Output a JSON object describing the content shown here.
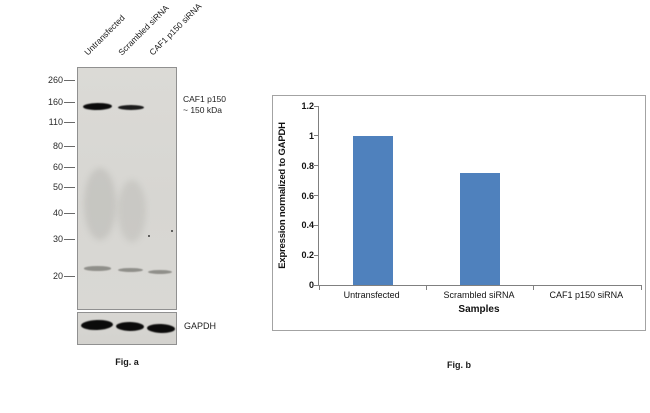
{
  "fig_a": {
    "caption": "Fig. a",
    "lanes": [
      "Untransfected",
      "Scrambled siRNA",
      "CAF1 p150 siRNA"
    ],
    "markers": [
      "260",
      "160",
      "110",
      "80",
      "60",
      "50",
      "40",
      "30",
      "20"
    ],
    "target_label_line1": "CAF1 p150",
    "target_label_line2": "~ 150 kDa",
    "loading_control": "GAPDH"
  },
  "fig_b": {
    "caption": "Fig. b"
  },
  "chart_data": {
    "type": "bar",
    "title": "",
    "categories": [
      "Untransfected",
      "Scrambled siRNA",
      "CAF1 p150 siRNA"
    ],
    "values": [
      1.0,
      0.75,
      0
    ],
    "xlabel": "Samples",
    "ylabel": "Expression normalized to GAPDH",
    "ylim": [
      0,
      1.2
    ],
    "yticks": [
      0,
      0.2,
      0.4,
      0.6,
      0.8,
      1,
      1.2
    ],
    "ytick_labels": [
      "0",
      "0.2",
      "0.4",
      "0.6",
      "0.8",
      "1",
      "1.2"
    ],
    "bar_color": "#4f81bd",
    "grid": false,
    "legend": false
  }
}
